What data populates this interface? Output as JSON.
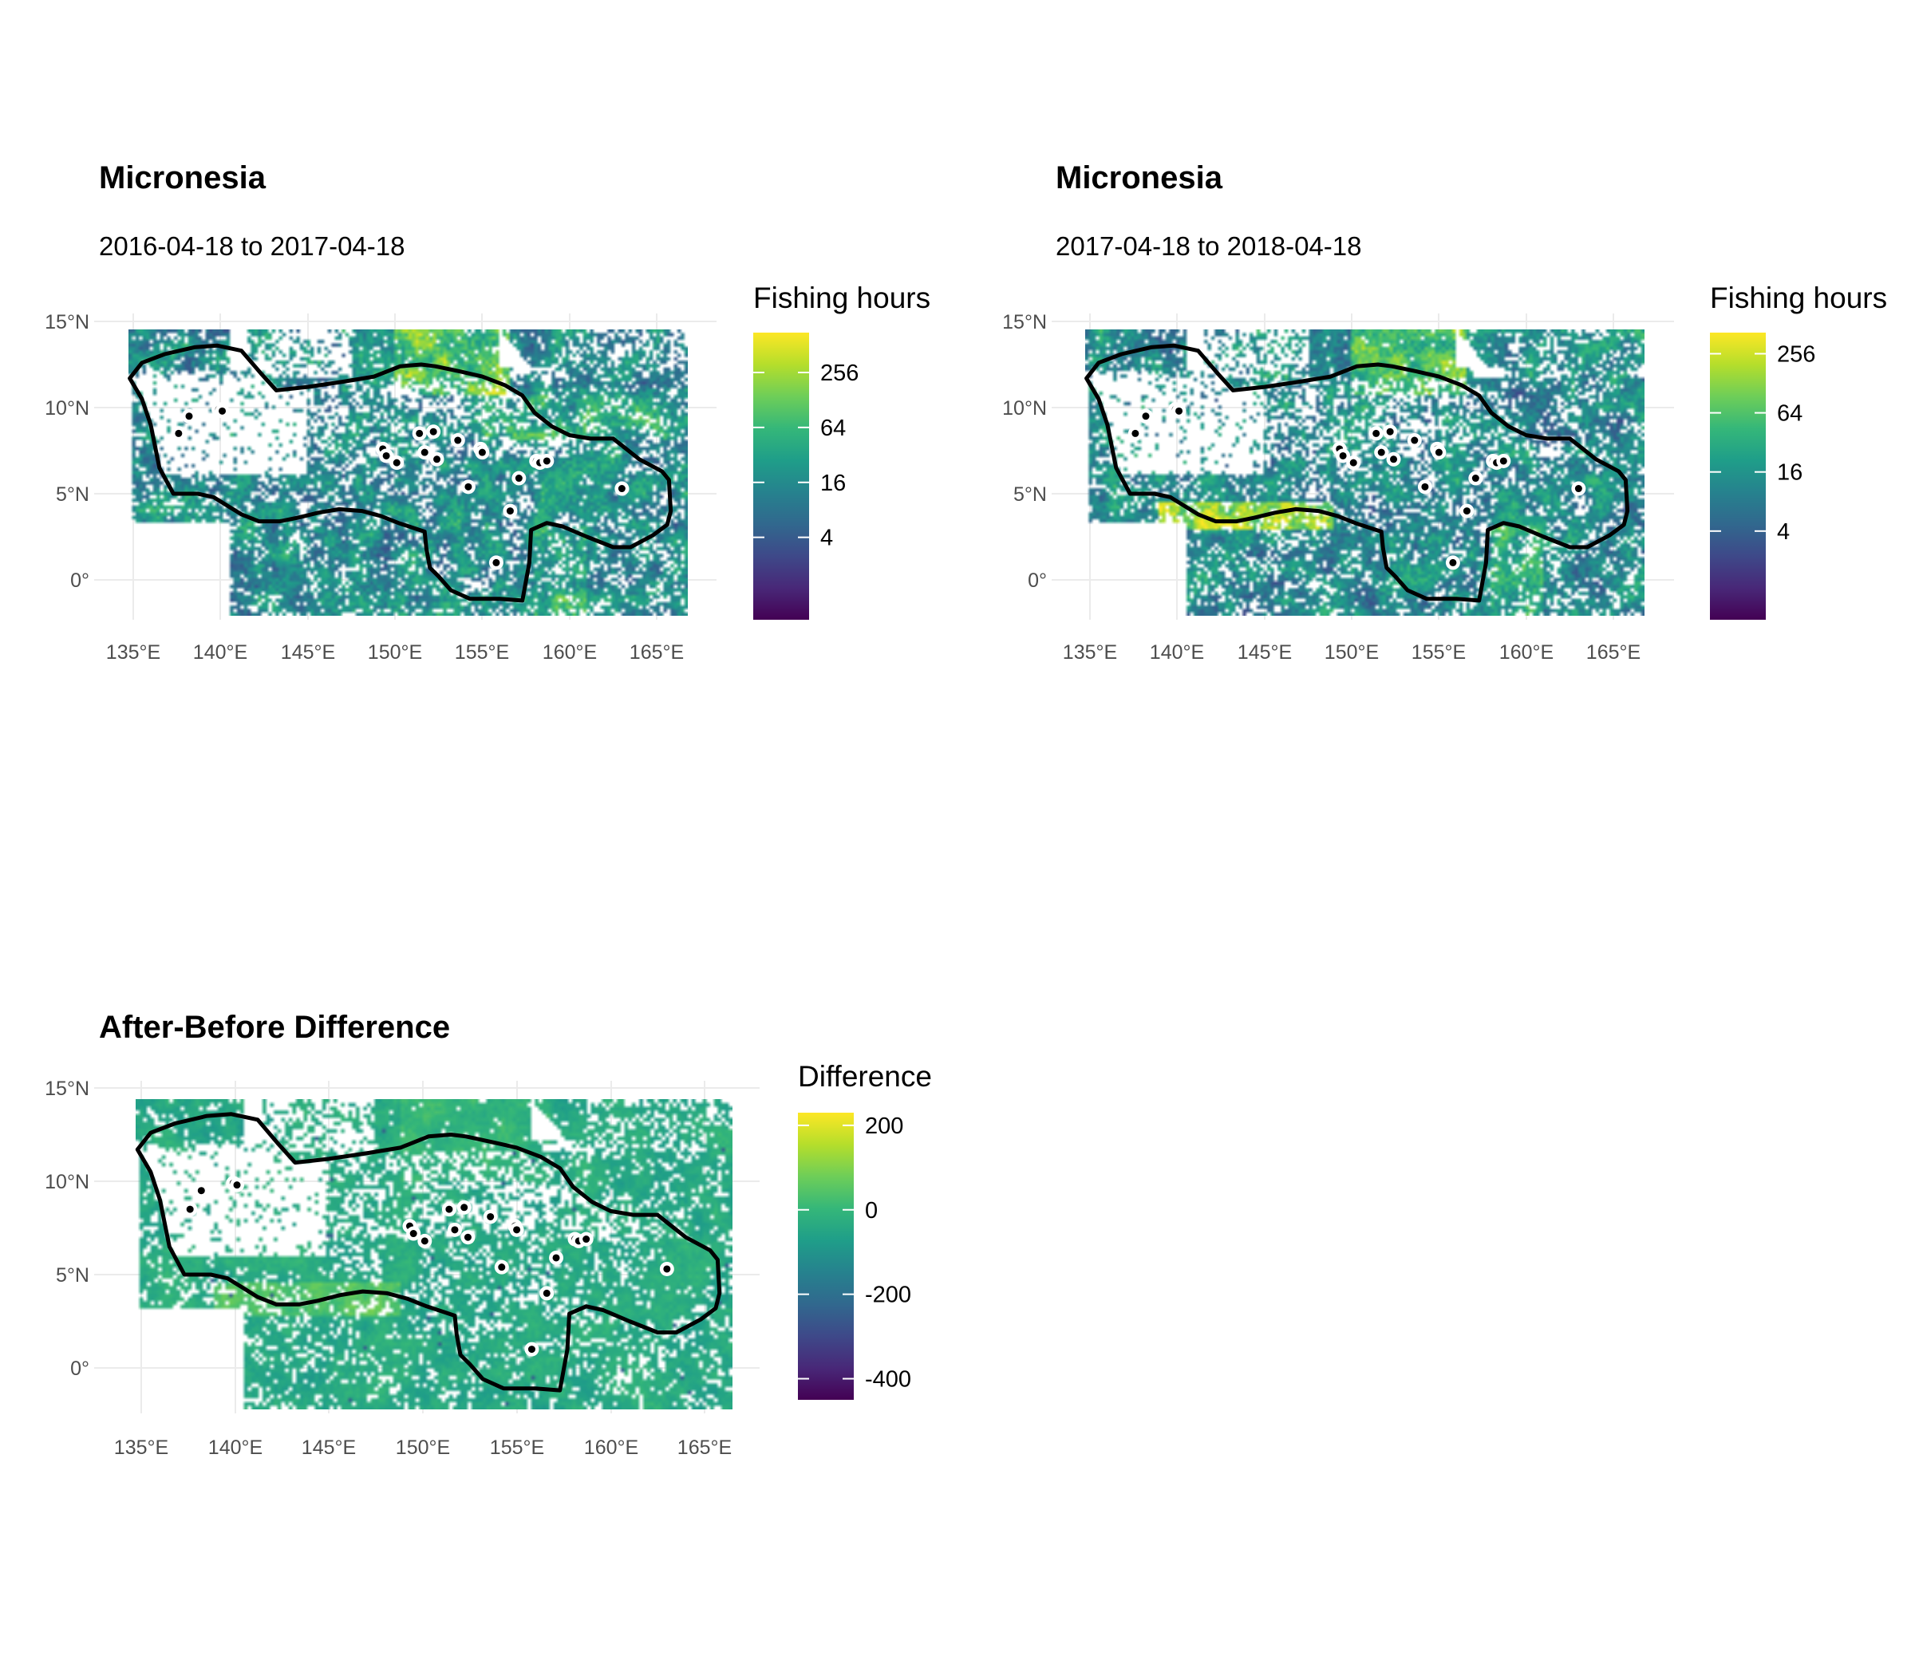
{
  "chart_data": [
    {
      "type": "heatmap",
      "panel_id": "before",
      "title": "Micronesia",
      "subtitle": "2016-04-18 to 2017-04-18",
      "legend": {
        "title": "Fishing hours",
        "scale": "log2",
        "domain": [
          0.5,
          700
        ],
        "breaks": [
          4,
          16,
          64,
          256
        ],
        "break_labels": [
          "4",
          "16",
          "64",
          "256"
        ],
        "position": "right"
      },
      "x_ticks": [
        "135°E",
        "140°E",
        "145°E",
        "150°E",
        "155°E",
        "160°E",
        "165°E"
      ],
      "y_ticks": [
        "15°N",
        "10°N",
        "5°N",
        "0°"
      ],
      "x_tick_values": [
        135,
        140,
        145,
        150,
        155,
        160,
        165
      ],
      "y_tick_values": [
        15,
        10,
        5,
        0
      ],
      "xlim": [
        132,
        168
      ],
      "ylim": [
        -2.2,
        15.2
      ],
      "data_extent": {
        "lon": [
          134.7,
          166.8
        ],
        "lat": [
          -2.2,
          14.4
        ]
      },
      "grid": true,
      "colormap": "viridis"
    },
    {
      "type": "heatmap",
      "panel_id": "after",
      "title": "Micronesia",
      "subtitle": "2017-04-18 to 2018-04-18",
      "legend": {
        "title": "Fishing hours",
        "scale": "log2",
        "domain": [
          0.5,
          420
        ],
        "breaks": [
          4,
          16,
          64,
          256
        ],
        "break_labels": [
          "4",
          "16",
          "64",
          "256"
        ],
        "position": "right"
      },
      "x_ticks": [
        "135°E",
        "140°E",
        "145°E",
        "150°E",
        "155°E",
        "160°E",
        "165°E"
      ],
      "y_ticks": [
        "15°N",
        "10°N",
        "5°N",
        "0°"
      ],
      "x_tick_values": [
        135,
        140,
        145,
        150,
        155,
        160,
        165
      ],
      "y_tick_values": [
        15,
        10,
        5,
        0
      ],
      "xlim": [
        132,
        168
      ],
      "ylim": [
        -2.2,
        15.2
      ],
      "data_extent": {
        "lon": [
          134.7,
          166.8
        ],
        "lat": [
          -2.2,
          14.4
        ]
      },
      "grid": true,
      "colormap": "viridis"
    },
    {
      "type": "heatmap",
      "panel_id": "difference",
      "title": "After-Before Difference",
      "subtitle": "",
      "legend": {
        "title": "Difference",
        "scale": "linear",
        "domain": [
          -450,
          230
        ],
        "breaks": [
          -400,
          -200,
          0,
          200
        ],
        "break_labels": [
          "-400",
          "-200",
          "0",
          "200"
        ],
        "position": "right"
      },
      "x_ticks": [
        "135°E",
        "140°E",
        "145°E",
        "150°E",
        "155°E",
        "160°E",
        "165°E"
      ],
      "y_ticks": [
        "15°N",
        "10°N",
        "5°N",
        "0°"
      ],
      "x_tick_values": [
        135,
        140,
        145,
        150,
        155,
        160,
        165
      ],
      "y_tick_values": [
        15,
        10,
        5,
        0
      ],
      "xlim": [
        132,
        168
      ],
      "ylim": [
        -2.2,
        15.2
      ],
      "data_extent": {
        "lon": [
          134.7,
          166.8
        ],
        "lat": [
          -2.2,
          14.4
        ]
      },
      "grid": true,
      "colormap": "viridis"
    }
  ],
  "eez_boundary_lonlat": [
    [
      134.8,
      11.7
    ],
    [
      135.5,
      12.6
    ],
    [
      136.8,
      13.1
    ],
    [
      138.5,
      13.5
    ],
    [
      139.8,
      13.6
    ],
    [
      141.2,
      13.3
    ],
    [
      142.3,
      12.0
    ],
    [
      143.2,
      11.0
    ],
    [
      145.0,
      11.2
    ],
    [
      147.0,
      11.5
    ],
    [
      148.8,
      11.8
    ],
    [
      150.3,
      12.4
    ],
    [
      151.5,
      12.5
    ],
    [
      152.3,
      12.4
    ],
    [
      153.7,
      12.1
    ],
    [
      155.0,
      11.8
    ],
    [
      156.3,
      11.3
    ],
    [
      157.3,
      10.7
    ],
    [
      158.0,
      9.7
    ],
    [
      159.0,
      8.9
    ],
    [
      160.0,
      8.4
    ],
    [
      161.2,
      8.2
    ],
    [
      162.5,
      8.2
    ],
    [
      163.0,
      7.8
    ],
    [
      164.0,
      7.0
    ],
    [
      165.3,
      6.3
    ],
    [
      165.7,
      5.8
    ],
    [
      165.8,
      4.0
    ],
    [
      165.6,
      3.2
    ],
    [
      164.8,
      2.6
    ],
    [
      163.5,
      1.9
    ],
    [
      162.5,
      1.9
    ],
    [
      161.0,
      2.5
    ],
    [
      159.6,
      3.1
    ],
    [
      158.7,
      3.3
    ],
    [
      157.8,
      2.9
    ],
    [
      157.7,
      1.0
    ],
    [
      157.3,
      -1.2
    ],
    [
      156.0,
      -1.1
    ],
    [
      154.3,
      -1.1
    ],
    [
      153.2,
      -0.6
    ],
    [
      152.5,
      0.2
    ],
    [
      152.0,
      0.7
    ],
    [
      151.8,
      1.8
    ],
    [
      151.7,
      2.8
    ],
    [
      151.1,
      3.0
    ],
    [
      150.2,
      3.3
    ],
    [
      149.2,
      3.7
    ],
    [
      148.1,
      4.0
    ],
    [
      146.8,
      4.1
    ],
    [
      145.6,
      3.9
    ],
    [
      144.4,
      3.6
    ],
    [
      143.4,
      3.4
    ],
    [
      142.2,
      3.4
    ],
    [
      141.2,
      3.8
    ],
    [
      140.4,
      4.3
    ],
    [
      139.6,
      4.8
    ],
    [
      138.7,
      5.0
    ],
    [
      137.3,
      5.0
    ],
    [
      136.5,
      6.5
    ],
    [
      136.0,
      9.0
    ],
    [
      135.5,
      10.5
    ],
    [
      134.8,
      11.7
    ]
  ],
  "islands_lonlat": [
    [
      138.2,
      9.5
    ],
    [
      137.6,
      8.5
    ],
    [
      139.9,
      9.9
    ],
    [
      140.1,
      9.8
    ],
    [
      149.3,
      7.6
    ],
    [
      149.5,
      7.2
    ],
    [
      150.1,
      6.8
    ],
    [
      151.7,
      7.4
    ],
    [
      151.4,
      8.5
    ],
    [
      152.2,
      8.6
    ],
    [
      153.6,
      8.1
    ],
    [
      154.2,
      5.4
    ],
    [
      154.9,
      7.6
    ],
    [
      155.0,
      7.4
    ],
    [
      155.8,
      1.0
    ],
    [
      157.1,
      5.9
    ],
    [
      158.1,
      6.9
    ],
    [
      158.3,
      6.8
    ],
    [
      158.7,
      6.9
    ],
    [
      163.0,
      5.3
    ],
    [
      152.4,
      7.0
    ],
    [
      156.6,
      4.0
    ]
  ],
  "background_color": "#ffffff",
  "boundary_color": "#000000"
}
